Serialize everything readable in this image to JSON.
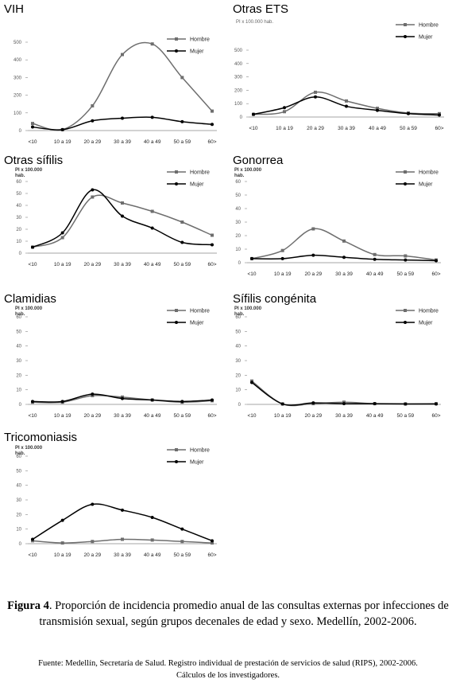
{
  "figure": {
    "caption_label": "Figura 4",
    "caption_text": ". Proporción de incidencia promedio anual de las consultas externas por infecciones de transmisión sexual, según grupos decenales de edad y sexo. Medellín, 2002-2006.",
    "source_line1": "Fuente: Medellín, Secretaría de Salud. Registro individual de prestación de servicios de salud (RIPS), 2002-2006.",
    "source_line2": "Cálculos de los investigadores."
  },
  "colors": {
    "hombre": "#6e6e6e",
    "mujer": "#000000",
    "axis": "#888888",
    "text": "#555555"
  },
  "chart_data": [
    {
      "type": "line",
      "title": "VIH",
      "ylabel": "",
      "yunit": "",
      "categories": [
        "<10",
        "10 a 19",
        "20 a 29",
        "30 a 39",
        "40 a 49",
        "50 a 59",
        "60>"
      ],
      "yticks": [
        0,
        100,
        200,
        300,
        400,
        500
      ],
      "ylim": [
        0,
        500
      ],
      "series": [
        {
          "name": "Hombre",
          "values": [
            40,
            5,
            140,
            430,
            490,
            300,
            110
          ]
        },
        {
          "name": "Mujer",
          "values": [
            20,
            5,
            55,
            70,
            75,
            50,
            35
          ]
        }
      ]
    },
    {
      "type": "line",
      "title": "Otras ETS",
      "ylabel": "",
      "yunit": "PI x 100.000 hab.",
      "categories": [
        "<10",
        "10 a 19",
        "20 a 29",
        "30 a 39",
        "40 a 49",
        "50 a 59",
        "60>"
      ],
      "yticks": [
        0,
        100,
        200,
        300,
        400,
        500
      ],
      "ylim": [
        0,
        500
      ],
      "series": [
        {
          "name": "Hombre",
          "values": [
            20,
            40,
            185,
            120,
            65,
            30,
            25
          ]
        },
        {
          "name": "Mujer",
          "values": [
            20,
            70,
            150,
            80,
            50,
            25,
            15
          ]
        }
      ]
    },
    {
      "type": "line",
      "title": "Otras sífilis",
      "ylabel": "",
      "yunit": "PI x 100.000 hab.",
      "categories": [
        "<10",
        "10 a 19",
        "20 a 29",
        "30 a 39",
        "40 a 49",
        "50 a 59",
        "60>"
      ],
      "yticks": [
        0,
        10,
        20,
        30,
        40,
        50,
        60
      ],
      "ylim": [
        0,
        60
      ],
      "series": [
        {
          "name": "Hombre",
          "values": [
            5,
            13,
            47,
            42,
            35,
            26,
            15
          ]
        },
        {
          "name": "Mujer",
          "values": [
            5,
            17,
            53,
            31,
            21,
            9,
            7
          ]
        }
      ]
    },
    {
      "type": "line",
      "title": "Gonorrea",
      "ylabel": "",
      "yunit": "PI x 100.000 hab.",
      "categories": [
        "<10",
        "10 a 19",
        "20 a 29",
        "30 a 39",
        "40 a 49",
        "50 a 59",
        "60>"
      ],
      "yticks": [
        0,
        10,
        20,
        30,
        40,
        50,
        60
      ],
      "ylim": [
        0,
        60
      ],
      "series": [
        {
          "name": "Hombre",
          "values": [
            3,
            9,
            25,
            16,
            6,
            5,
            2
          ]
        },
        {
          "name": "Mujer",
          "values": [
            3,
            3,
            5.5,
            4,
            2.5,
            2,
            1.5
          ]
        }
      ]
    },
    {
      "type": "line",
      "title": "Clamidias",
      "ylabel": "",
      "yunit": "PI x 100.000 hab.",
      "categories": [
        "<10",
        "10 a 19",
        "20 a 29",
        "30 a 39",
        "40 a 49",
        "50 a 59",
        "60>"
      ],
      "yticks": [
        0,
        10,
        20,
        30,
        40,
        50,
        60
      ],
      "ylim": [
        0,
        60
      ],
      "series": [
        {
          "name": "Hombre",
          "values": [
            1.5,
            1.5,
            6,
            5,
            3,
            1.5,
            2.5
          ]
        },
        {
          "name": "Mujer",
          "values": [
            2,
            2,
            7,
            4,
            3,
            2,
            3
          ]
        }
      ]
    },
    {
      "type": "line",
      "title": "Sífilis congénita",
      "ylabel": "",
      "yunit": "PI x 100.000 hab.",
      "categories": [
        "<10",
        "10 a 19",
        "20 a 29",
        "30 a 39",
        "40 a 49",
        "50 a 59",
        "60>"
      ],
      "yticks": [
        0,
        10,
        20,
        30,
        40,
        50,
        60
      ],
      "ylim": [
        0,
        60
      ],
      "series": [
        {
          "name": "Hombre",
          "values": [
            16,
            0.3,
            0.5,
            1.5,
            0.5,
            0.3,
            0.5
          ]
        },
        {
          "name": "Mujer",
          "values": [
            15,
            0.3,
            1,
            0.5,
            0.5,
            0.3,
            0.3
          ]
        }
      ]
    },
    {
      "type": "line",
      "title": "Tricomoniasis",
      "ylabel": "",
      "yunit": "PI x 100.000 hab.",
      "categories": [
        "<10",
        "10 a 19",
        "20 a 29",
        "30 a 39",
        "40 a 49",
        "50 a 59",
        "60>"
      ],
      "yticks": [
        0,
        10,
        20,
        30,
        40,
        50,
        60
      ],
      "ylim": [
        0,
        60
      ],
      "series": [
        {
          "name": "Hombre",
          "values": [
            2,
            0.5,
            1.5,
            3,
            2.5,
            1.5,
            0.5
          ]
        },
        {
          "name": "Mujer",
          "values": [
            3,
            16,
            27,
            23,
            18,
            10,
            2
          ]
        }
      ]
    }
  ]
}
